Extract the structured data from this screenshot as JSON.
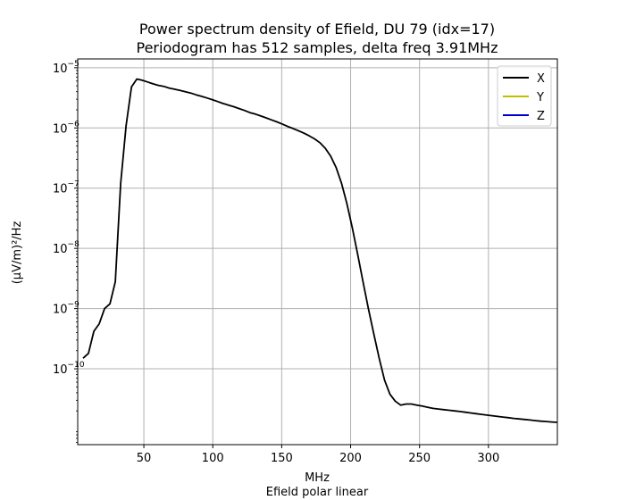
{
  "chart_data": {
    "type": "line",
    "title": "Power spectrum density of Efield, DU 79 (idx=17)",
    "subtitle": "Periodogram has 512 samples, delta freq 3.91MHz",
    "xlabel": "MHz",
    "xlabel2": "Efield polar linear",
    "ylabel": "(μV/m)²/Hz",
    "yscale": "log",
    "xlim": [
      2,
      350
    ],
    "ylim": [
      5.5e-12,
      1.4e-05
    ],
    "grid": true,
    "legend_position": "top-right",
    "x_ticks": [
      50,
      100,
      150,
      200,
      250,
      300
    ],
    "y_ticks": [
      {
        "value": 1e-10,
        "mant": "10",
        "exp": "−10"
      },
      {
        "value": 1e-09,
        "mant": "10",
        "exp": "−9"
      },
      {
        "value": 1e-08,
        "mant": "10",
        "exp": "−8"
      },
      {
        "value": 1e-07,
        "mant": "10",
        "exp": "−7"
      },
      {
        "value": 1e-06,
        "mant": "10",
        "exp": "−6"
      },
      {
        "value": 1e-05,
        "mant": "10",
        "exp": "−5"
      }
    ],
    "series": [
      {
        "name": "X",
        "color": "#000000",
        "x": [
          5.9,
          9.8,
          13.7,
          17.6,
          21.5,
          25.4,
          29.3,
          33.2,
          37.1,
          41.0,
          44.9,
          48.8,
          52.7,
          56.6,
          60.5,
          64.4,
          68.3,
          72.2,
          76.2,
          80.1,
          84.0,
          87.9,
          91.8,
          95.7,
          99.6,
          103.5,
          107.4,
          111.3,
          115.2,
          119.1,
          123.0,
          126.9,
          130.9,
          134.8,
          138.7,
          142.6,
          146.5,
          150.4,
          154.3,
          158.2,
          162.1,
          166.0,
          169.9,
          173.8,
          177.7,
          181.6,
          185.5,
          189.5,
          193.4,
          197.3,
          201.2,
          205.1,
          209.0,
          212.9,
          216.8,
          220.7,
          224.6,
          228.5,
          232.4,
          236.3,
          240.2,
          244.1,
          248.0,
          251.9,
          255.8,
          259.8,
          263.7,
          267.6,
          271.5,
          275.4,
          279.3,
          283.2,
          287.1,
          291.0,
          294.9,
          298.8,
          302.7,
          306.6,
          310.5,
          314.5,
          318.4,
          322.3,
          326.2,
          330.1,
          334.0,
          337.9,
          341.8,
          345.7,
          349.6
        ],
        "y": [
          1.5e-10,
          1.8e-10,
          4.2e-10,
          5.6e-10,
          1e-09,
          1.2e-09,
          2.8e-09,
          1.2e-07,
          1.1e-06,
          4.8e-06,
          6.5e-06,
          6.2e-06,
          5.8e-06,
          5.4e-06,
          5.1e-06,
          4.9e-06,
          4.6e-06,
          4.4e-06,
          4.2e-06,
          4e-06,
          3.8e-06,
          3.55e-06,
          3.35e-06,
          3.15e-06,
          2.95e-06,
          2.75e-06,
          2.55e-06,
          2.4e-06,
          2.25e-06,
          2.1e-06,
          1.95e-06,
          1.8e-06,
          1.7e-06,
          1.58e-06,
          1.47e-06,
          1.36e-06,
          1.26e-06,
          1.16e-06,
          1.06e-06,
          9.8e-07,
          9e-07,
          8.2e-07,
          7.4e-07,
          6.6e-07,
          5.7e-07,
          4.6e-07,
          3.4e-07,
          2.2e-07,
          1.2e-07,
          5.5e-08,
          2.2e-08,
          8e-09,
          2.8e-09,
          1e-09,
          3.8e-10,
          1.5e-10,
          6.5e-11,
          3.8e-11,
          2.9e-11,
          2.5e-11,
          2.6e-11,
          2.6e-11,
          2.5e-11,
          2.4e-11,
          2.3e-11,
          2.2e-11,
          2.15e-11,
          2.1e-11,
          2.05e-11,
          2e-11,
          1.95e-11,
          1.9e-11,
          1.85e-11,
          1.8e-11,
          1.75e-11,
          1.7e-11,
          1.66e-11,
          1.62e-11,
          1.58e-11,
          1.54e-11,
          1.5e-11,
          1.47e-11,
          1.44e-11,
          1.41e-11,
          1.38e-11,
          1.35e-11,
          1.33e-11,
          1.31e-11,
          1.29e-11
        ]
      },
      {
        "name": "Y",
        "color": "#bfbf00"
      },
      {
        "name": "Z",
        "color": "#0000cc"
      }
    ]
  }
}
